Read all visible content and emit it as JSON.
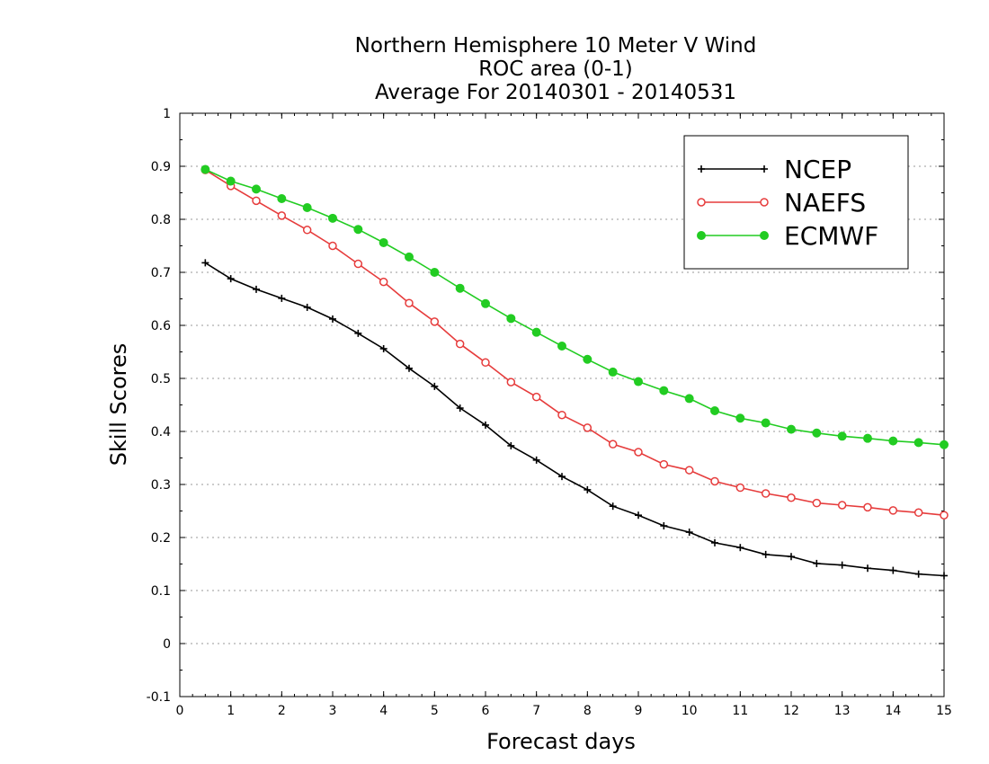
{
  "chart_data": {
    "type": "line",
    "title_lines": [
      "Northern Hemisphere 10 Meter V Wind",
      "ROC area (0-1)",
      "Average For 20140301 - 20140531"
    ],
    "xlabel": "Forecast days",
    "ylabel": "Skill Scores",
    "xlim": [
      0,
      15
    ],
    "ylim": [
      -0.1,
      1
    ],
    "x_ticks": [
      0,
      1,
      2,
      3,
      4,
      5,
      6,
      7,
      8,
      9,
      10,
      11,
      12,
      13,
      14,
      15
    ],
    "x_tick_labels": [
      "0",
      "1",
      "2",
      "3",
      "4",
      "5",
      "6",
      "7",
      "8",
      "9",
      "10",
      "11",
      "12",
      "13",
      "14",
      "15"
    ],
    "y_ticks": [
      -0.1,
      0,
      0.1,
      0.2,
      0.3,
      0.4,
      0.5,
      0.6,
      0.7,
      0.8,
      0.9,
      1
    ],
    "y_tick_labels": [
      "-0.1",
      "0",
      "0.1",
      "0.2",
      "0.3",
      "0.4",
      "0.5",
      "0.6",
      "0.7",
      "0.8",
      "0.9",
      "1"
    ],
    "grid": "horizontal-dotted",
    "legend_position": "top-right",
    "x": [
      0.5,
      1,
      1.5,
      2,
      2.5,
      3,
      3.5,
      4,
      4.5,
      5,
      5.5,
      6,
      6.5,
      7,
      7.5,
      8,
      8.5,
      9,
      9.5,
      10,
      10.5,
      11,
      11.5,
      12,
      12.5,
      13,
      13.5,
      14,
      14.5,
      15
    ],
    "series": [
      {
        "name": "NCEP",
        "color": "#000000",
        "marker": "plus",
        "values": [
          0.718,
          0.688,
          0.668,
          0.651,
          0.634,
          0.612,
          0.585,
          0.556,
          0.519,
          0.485,
          0.444,
          0.412,
          0.373,
          0.346,
          0.315,
          0.29,
          0.259,
          0.242,
          0.222,
          0.21,
          0.19,
          0.181,
          0.168,
          0.164,
          0.151,
          0.148,
          0.142,
          0.138,
          0.131,
          0.128
        ]
      },
      {
        "name": "NAEFS",
        "color": "#e63c3c",
        "marker": "open-circle",
        "values": [
          0.893,
          0.863,
          0.835,
          0.807,
          0.78,
          0.75,
          0.716,
          0.682,
          0.642,
          0.607,
          0.565,
          0.53,
          0.493,
          0.465,
          0.431,
          0.407,
          0.376,
          0.361,
          0.338,
          0.327,
          0.306,
          0.294,
          0.283,
          0.275,
          0.265,
          0.261,
          0.257,
          0.251,
          0.247,
          0.242
        ]
      },
      {
        "name": "ECMWF",
        "color": "#22cc22",
        "marker": "filled-circle",
        "values": [
          0.894,
          0.872,
          0.857,
          0.839,
          0.822,
          0.802,
          0.781,
          0.756,
          0.729,
          0.7,
          0.67,
          0.641,
          0.613,
          0.587,
          0.561,
          0.536,
          0.512,
          0.494,
          0.477,
          0.462,
          0.439,
          0.425,
          0.416,
          0.404,
          0.397,
          0.391,
          0.387,
          0.382,
          0.379,
          0.375
        ]
      }
    ]
  }
}
